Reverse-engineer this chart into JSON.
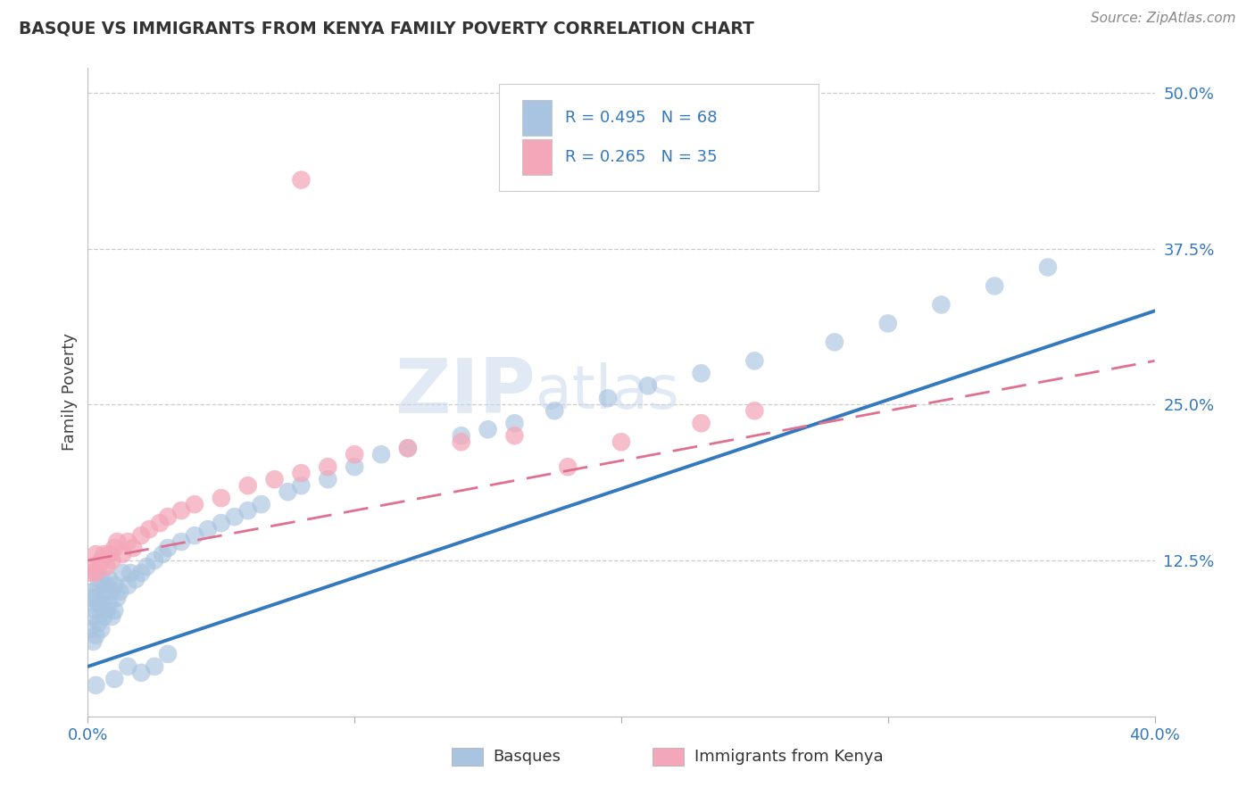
{
  "title": "BASQUE VS IMMIGRANTS FROM KENYA FAMILY POVERTY CORRELATION CHART",
  "source_text": "Source: ZipAtlas.com",
  "ylabel": "Family Poverty",
  "xlim": [
    0.0,
    0.4
  ],
  "ylim": [
    0.0,
    0.52
  ],
  "xtick_positions": [
    0.0,
    0.1,
    0.2,
    0.3,
    0.4
  ],
  "xtick_labels": [
    "0.0%",
    "",
    "",
    "",
    "40.0%"
  ],
  "ytick_labels_right": [
    "12.5%",
    "25.0%",
    "37.5%",
    "50.0%"
  ],
  "yticks_right": [
    0.125,
    0.25,
    0.375,
    0.5
  ],
  "basque_color": "#a8c4e0",
  "kenya_color": "#f4a7b9",
  "blue_line_color": "#3478bd",
  "pink_line_color": "#e07090",
  "label_basque": "Basques",
  "label_kenya": "Immigrants from Kenya",
  "watermark_zip": "ZIP",
  "watermark_atlas": "atlas",
  "background_color": "#ffffff",
  "blue_line_x0": 0.0,
  "blue_line_y0": 0.04,
  "blue_line_x1": 0.4,
  "blue_line_y1": 0.325,
  "pink_line_x0": 0.0,
  "pink_line_y0": 0.125,
  "pink_line_x1": 0.4,
  "pink_line_y1": 0.285,
  "basque_x": [
    0.001,
    0.001,
    0.002,
    0.002,
    0.002,
    0.003,
    0.003,
    0.003,
    0.003,
    0.004,
    0.004,
    0.004,
    0.005,
    0.005,
    0.005,
    0.006,
    0.006,
    0.007,
    0.007,
    0.008,
    0.008,
    0.009,
    0.009,
    0.01,
    0.01,
    0.011,
    0.012,
    0.013,
    0.015,
    0.016,
    0.018,
    0.02,
    0.022,
    0.025,
    0.028,
    0.03,
    0.035,
    0.04,
    0.045,
    0.05,
    0.055,
    0.06,
    0.065,
    0.075,
    0.08,
    0.09,
    0.1,
    0.11,
    0.12,
    0.14,
    0.15,
    0.16,
    0.175,
    0.195,
    0.21,
    0.23,
    0.25,
    0.28,
    0.3,
    0.32,
    0.34,
    0.36,
    0.01,
    0.015,
    0.02,
    0.025,
    0.03,
    0.003
  ],
  "basque_y": [
    0.07,
    0.095,
    0.06,
    0.08,
    0.1,
    0.065,
    0.085,
    0.095,
    0.115,
    0.075,
    0.09,
    0.105,
    0.07,
    0.09,
    0.11,
    0.08,
    0.1,
    0.085,
    0.105,
    0.09,
    0.11,
    0.08,
    0.1,
    0.085,
    0.105,
    0.095,
    0.1,
    0.115,
    0.105,
    0.115,
    0.11,
    0.115,
    0.12,
    0.125,
    0.13,
    0.135,
    0.14,
    0.145,
    0.15,
    0.155,
    0.16,
    0.165,
    0.17,
    0.18,
    0.185,
    0.19,
    0.2,
    0.21,
    0.215,
    0.225,
    0.23,
    0.235,
    0.245,
    0.255,
    0.265,
    0.275,
    0.285,
    0.3,
    0.315,
    0.33,
    0.345,
    0.36,
    0.03,
    0.04,
    0.035,
    0.04,
    0.05,
    0.025
  ],
  "kenya_x": [
    0.001,
    0.002,
    0.003,
    0.003,
    0.004,
    0.005,
    0.006,
    0.007,
    0.008,
    0.009,
    0.01,
    0.011,
    0.013,
    0.015,
    0.017,
    0.02,
    0.023,
    0.027,
    0.03,
    0.035,
    0.04,
    0.05,
    0.06,
    0.07,
    0.08,
    0.09,
    0.1,
    0.12,
    0.14,
    0.16,
    0.18,
    0.2,
    0.23,
    0.25,
    0.08
  ],
  "kenya_y": [
    0.115,
    0.12,
    0.115,
    0.13,
    0.12,
    0.125,
    0.13,
    0.12,
    0.13,
    0.125,
    0.135,
    0.14,
    0.13,
    0.14,
    0.135,
    0.145,
    0.15,
    0.155,
    0.16,
    0.165,
    0.17,
    0.175,
    0.185,
    0.19,
    0.195,
    0.2,
    0.21,
    0.215,
    0.22,
    0.225,
    0.2,
    0.22,
    0.235,
    0.245,
    0.43
  ]
}
